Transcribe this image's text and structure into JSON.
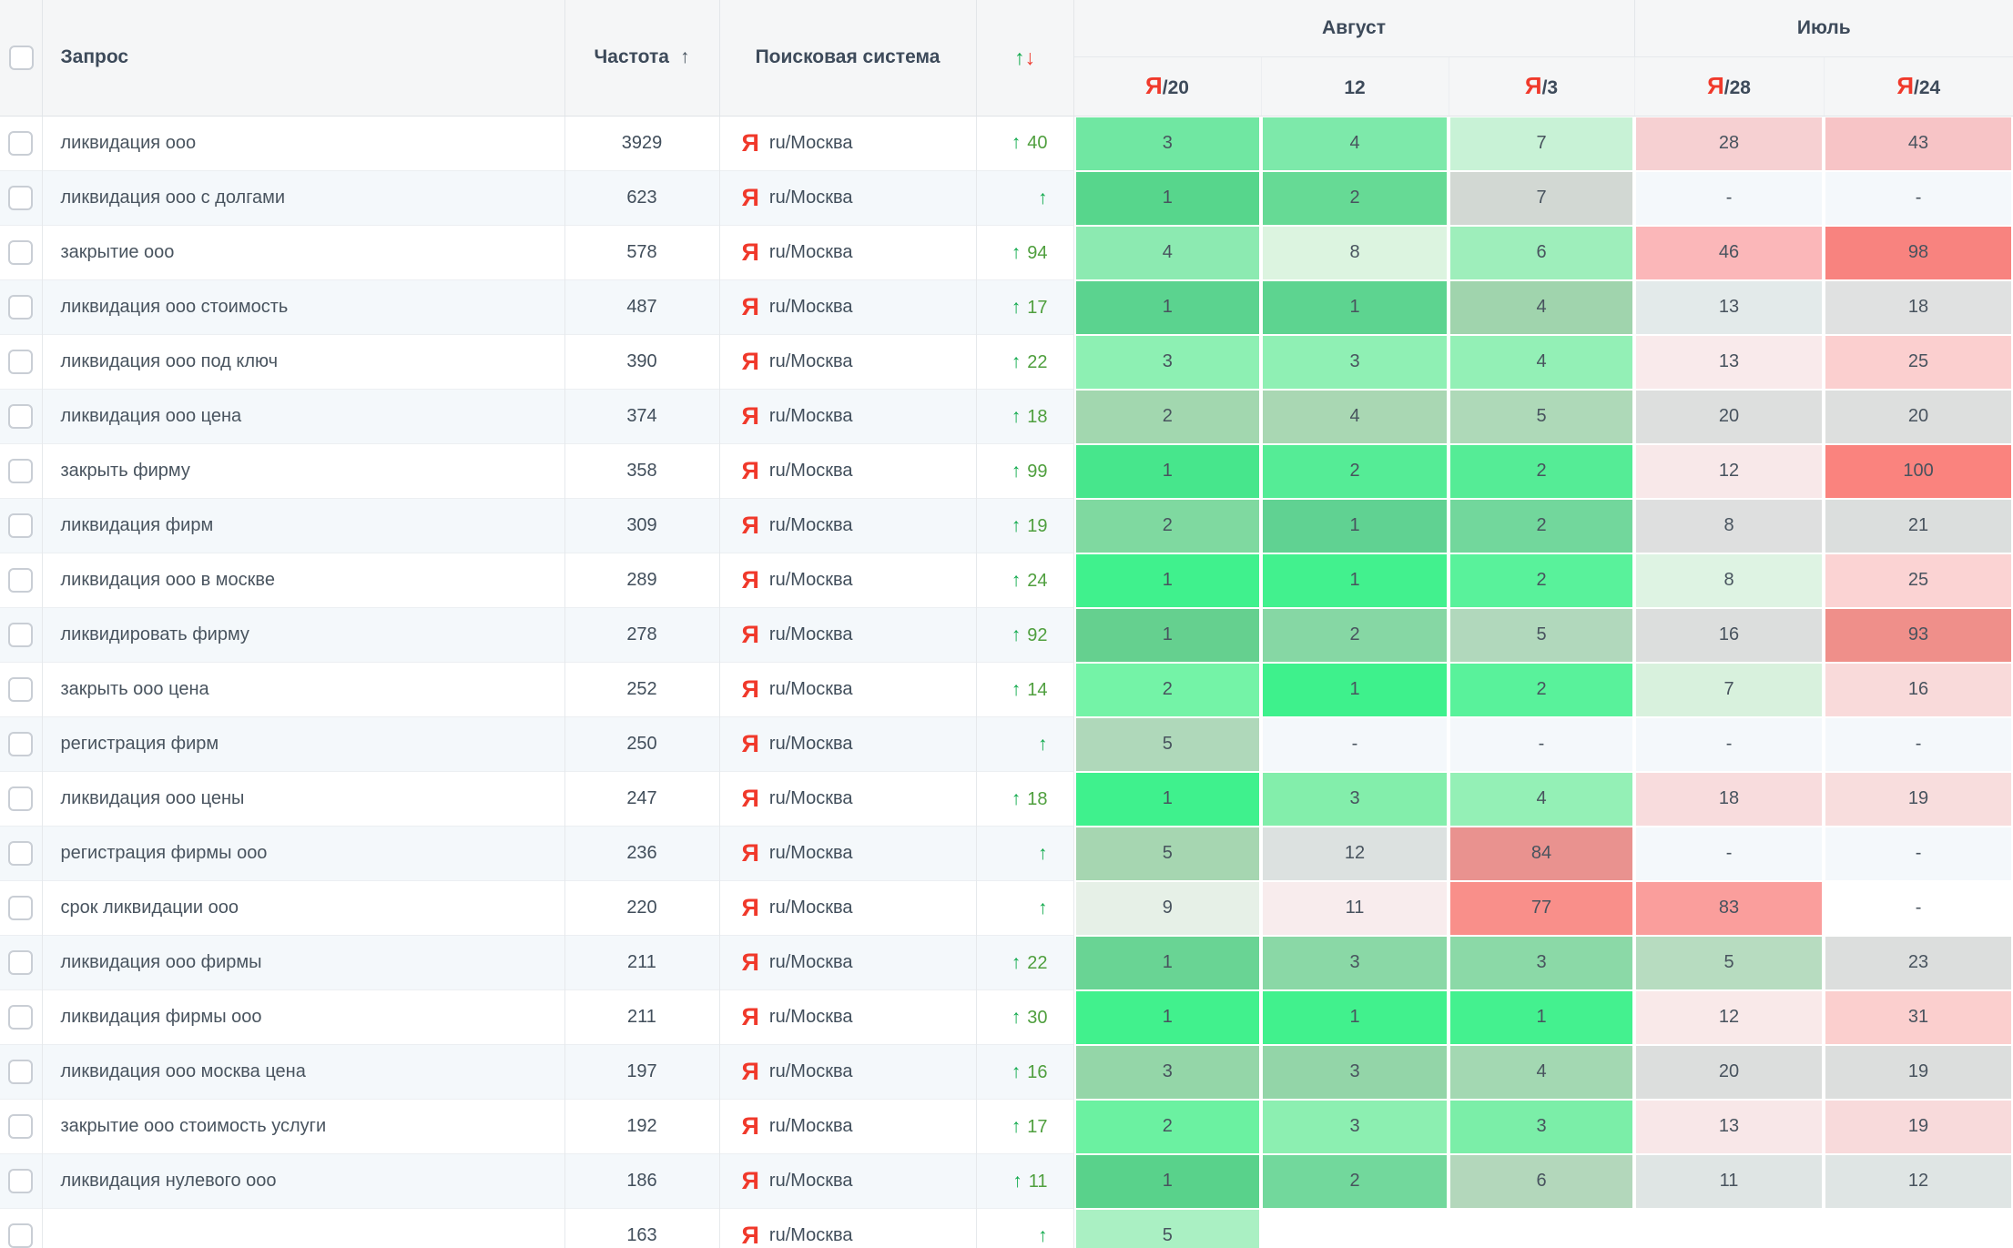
{
  "colors": {
    "row_base": "#ffffff",
    "row_alt": "#f4f8fb",
    "yandex_red": "#f0392b",
    "up_green": "#0ea94a",
    "down_red": "#ee4236",
    "change_green": "#4f9f3e",
    "header_text": "#3d4a5a"
  },
  "header": {
    "query_label": "Запрос",
    "freq_label": "Частота",
    "freq_sort_icon": "↑",
    "engine_label": "Поисковая система",
    "change_up_icon": "↑",
    "change_down_icon": "↓",
    "groups": [
      {
        "label": "Август"
      },
      {
        "label": "Июль"
      }
    ],
    "date_columns": [
      {
        "ya": "Я",
        "label": "/20"
      },
      {
        "ya": "",
        "label": "12"
      },
      {
        "ya": "Я",
        "label": "/3"
      },
      {
        "ya": "Я",
        "label": "/28"
      },
      {
        "ya": "Я",
        "label": "/24"
      }
    ]
  },
  "rows": [
    {
      "query": "ликвидация ооо",
      "frequency": "3929",
      "engine_icon": "Я",
      "engine": "ru/Москва",
      "change": "40",
      "cells": [
        {
          "v": "3",
          "bg": "#70e7a2"
        },
        {
          "v": "4",
          "bg": "#7de9aa"
        },
        {
          "v": "7",
          "bg": "#c8f2d6"
        },
        {
          "v": "28",
          "bg": "#f6d0d2"
        },
        {
          "v": "43",
          "bg": "#f7c4c6"
        }
      ]
    },
    {
      "query": "ликвидация ооо с долгами",
      "frequency": "623",
      "engine_icon": "Я",
      "engine": "ru/Москва",
      "change": "",
      "cells": [
        {
          "v": "1",
          "bg": "#57d68c"
        },
        {
          "v": "2",
          "bg": "#66da95"
        },
        {
          "v": "7",
          "bg": "#d2d8d3"
        },
        {
          "v": "-",
          "bg": ""
        },
        {
          "v": "-",
          "bg": ""
        }
      ]
    },
    {
      "query": "закрытие ооо",
      "frequency": "578",
      "engine_icon": "Я",
      "engine": "ru/Москва",
      "change": "94",
      "cells": [
        {
          "v": "4",
          "bg": "#8ceab1"
        },
        {
          "v": "8",
          "bg": "#dcf4e0"
        },
        {
          "v": "6",
          "bg": "#9eeebb"
        },
        {
          "v": "46",
          "bg": "#fbb7b9"
        },
        {
          "v": "98",
          "bg": "#f8837f"
        }
      ]
    },
    {
      "query": "ликвидация ооо стоимость",
      "frequency": "487",
      "engine_icon": "Я",
      "engine": "ru/Москва",
      "change": "17",
      "cells": [
        {
          "v": "1",
          "bg": "#5bd38f"
        },
        {
          "v": "1",
          "bg": "#5dd490"
        },
        {
          "v": "4",
          "bg": "#a0d4ad"
        },
        {
          "v": "13",
          "bg": "#e3eaea"
        },
        {
          "v": "18",
          "bg": "#e0e1e1"
        }
      ]
    },
    {
      "query": "ликвидация ооо под ключ",
      "frequency": "390",
      "engine_icon": "Я",
      "engine": "ru/Москва",
      "change": "22",
      "cells": [
        {
          "v": "3",
          "bg": "#8df0b3"
        },
        {
          "v": "3",
          "bg": "#8ff0b4"
        },
        {
          "v": "4",
          "bg": "#93f0b6"
        },
        {
          "v": "13",
          "bg": "#f9eaeb"
        },
        {
          "v": "25",
          "bg": "#fbcfcf"
        }
      ]
    },
    {
      "query": "ликвидация ооо цена",
      "frequency": "374",
      "engine_icon": "Я",
      "engine": "ru/Москва",
      "change": "18",
      "cells": [
        {
          "v": "2",
          "bg": "#a2d7af"
        },
        {
          "v": "4",
          "bg": "#a9d7b3"
        },
        {
          "v": "5",
          "bg": "#aed9b8"
        },
        {
          "v": "20",
          "bg": "#dddfde"
        },
        {
          "v": "20",
          "bg": "#dddfde"
        }
      ]
    },
    {
      "query": "закрыть фирму",
      "frequency": "358",
      "engine_icon": "Я",
      "engine": "ru/Москва",
      "change": "99",
      "cells": [
        {
          "v": "1",
          "bg": "#47e68c"
        },
        {
          "v": "2",
          "bg": "#55ec96"
        },
        {
          "v": "2",
          "bg": "#55ec96"
        },
        {
          "v": "12",
          "bg": "#f8e8e9"
        },
        {
          "v": "100",
          "bg": "#fa837e"
        }
      ]
    },
    {
      "query": "ликвидация фирм",
      "frequency": "309",
      "engine_icon": "Я",
      "engine": "ru/Москва",
      "change": "19",
      "cells": [
        {
          "v": "2",
          "bg": "#7fd9a0"
        },
        {
          "v": "1",
          "bg": "#60d292"
        },
        {
          "v": "2",
          "bg": "#72d79c"
        },
        {
          "v": "8",
          "bg": "#dedfdf"
        },
        {
          "v": "21",
          "bg": "#dbdedd"
        }
      ]
    },
    {
      "query": "ликвидация ооо в москве",
      "frequency": "289",
      "engine_icon": "Я",
      "engine": "ru/Москва",
      "change": "24",
      "cells": [
        {
          "v": "1",
          "bg": "#40f18d"
        },
        {
          "v": "1",
          "bg": "#42f18e"
        },
        {
          "v": "2",
          "bg": "#59f29b"
        },
        {
          "v": "8",
          "bg": "#def3e3"
        },
        {
          "v": "25",
          "bg": "#fbd3d3"
        }
      ]
    },
    {
      "query": "ликвидировать фирму",
      "frequency": "278",
      "engine_icon": "Я",
      "engine": "ru/Москва",
      "change": "92",
      "cells": [
        {
          "v": "1",
          "bg": "#65d08f"
        },
        {
          "v": "2",
          "bg": "#86d7a4"
        },
        {
          "v": "5",
          "bg": "#b1d8bc"
        },
        {
          "v": "16",
          "bg": "#dcdedd"
        },
        {
          "v": "93",
          "bg": "#ef8f8a"
        }
      ]
    },
    {
      "query": "закрыть ооо цена",
      "frequency": "252",
      "engine_icon": "Я",
      "engine": "ru/Москва",
      "change": "14",
      "cells": [
        {
          "v": "2",
          "bg": "#74f3a7"
        },
        {
          "v": "1",
          "bg": "#3ef18c"
        },
        {
          "v": "2",
          "bg": "#59f29b"
        },
        {
          "v": "7",
          "bg": "#d8f1dd"
        },
        {
          "v": "16",
          "bg": "#f9dada"
        }
      ]
    },
    {
      "query": "регистрация фирм",
      "frequency": "250",
      "engine_icon": "Я",
      "engine": "ru/Москва",
      "change": "",
      "cells": [
        {
          "v": "5",
          "bg": "#afd8ba"
        },
        {
          "v": "-",
          "bg": ""
        },
        {
          "v": "-",
          "bg": ""
        },
        {
          "v": "-",
          "bg": ""
        },
        {
          "v": "-",
          "bg": ""
        }
      ]
    },
    {
      "query": "ликвидация ооо цены",
      "frequency": "247",
      "engine_icon": "Я",
      "engine": "ru/Москва",
      "change": "18",
      "cells": [
        {
          "v": "1",
          "bg": "#3ff18d"
        },
        {
          "v": "3",
          "bg": "#83eeab"
        },
        {
          "v": "4",
          "bg": "#94f0b6"
        },
        {
          "v": "18",
          "bg": "#f8dcdd"
        },
        {
          "v": "19",
          "bg": "#f8dddd"
        }
      ]
    },
    {
      "query": "регистрация фирмы ооо",
      "frequency": "236",
      "engine_icon": "Я",
      "engine": "ru/Москва",
      "change": "",
      "cells": [
        {
          "v": "5",
          "bg": "#a6d6b1"
        },
        {
          "v": "12",
          "bg": "#dce1e0"
        },
        {
          "v": "84",
          "bg": "#e9928f"
        },
        {
          "v": "-",
          "bg": ""
        },
        {
          "v": "-",
          "bg": ""
        }
      ]
    },
    {
      "query": "срок ликвидации ооо",
      "frequency": "220",
      "engine_icon": "Я",
      "engine": "ru/Москва",
      "change": "",
      "cells": [
        {
          "v": "9",
          "bg": "#e6f0e7"
        },
        {
          "v": "11",
          "bg": "#f8eced"
        },
        {
          "v": "77",
          "bg": "#f98f8a"
        },
        {
          "v": "83",
          "bg": "#fa9e9c"
        },
        {
          "v": "-",
          "bg": ""
        }
      ]
    },
    {
      "query": "ликвидация ооо фирмы",
      "frequency": "211",
      "engine_icon": "Я",
      "engine": "ru/Москва",
      "change": "22",
      "cells": [
        {
          "v": "1",
          "bg": "#69d494"
        },
        {
          "v": "3",
          "bg": "#8ad8a6"
        },
        {
          "v": "3",
          "bg": "#8bd9a7"
        },
        {
          "v": "5",
          "bg": "#b7dcc0"
        },
        {
          "v": "23",
          "bg": "#dcdedd"
        }
      ]
    },
    {
      "query": "ликвидация фирмы ооо",
      "frequency": "211",
      "engine_icon": "Я",
      "engine": "ru/Москва",
      "change": "30",
      "cells": [
        {
          "v": "1",
          "bg": "#41f18d"
        },
        {
          "v": "1",
          "bg": "#41f18d"
        },
        {
          "v": "1",
          "bg": "#44f18f"
        },
        {
          "v": "12",
          "bg": "#f9e9e9"
        },
        {
          "v": "31",
          "bg": "#fbcfce"
        }
      ]
    },
    {
      "query": "ликвидация ооо москва цена",
      "frequency": "197",
      "engine_icon": "Я",
      "engine": "ru/Москва",
      "change": "16",
      "cells": [
        {
          "v": "3",
          "bg": "#94d6a8"
        },
        {
          "v": "3",
          "bg": "#93d5a8"
        },
        {
          "v": "4",
          "bg": "#a3d8b2"
        },
        {
          "v": "20",
          "bg": "#dcdedd"
        },
        {
          "v": "19",
          "bg": "#dcdedd"
        }
      ]
    },
    {
      "query": "закрытие ооо стоимость услуги",
      "frequency": "192",
      "engine_icon": "Я",
      "engine": "ru/Москва",
      "change": "17",
      "cells": [
        {
          "v": "2",
          "bg": "#6bf1a1"
        },
        {
          "v": "3",
          "bg": "#8cefb1"
        },
        {
          "v": "3",
          "bg": "#7beea8"
        },
        {
          "v": "13",
          "bg": "#f8e7e8"
        },
        {
          "v": "19",
          "bg": "#f8dadb"
        }
      ]
    },
    {
      "query": "ликвидация нулевого ооо",
      "frequency": "186",
      "engine_icon": "Я",
      "engine": "ru/Москва",
      "change": "11",
      "cells": [
        {
          "v": "1",
          "bg": "#59d28b"
        },
        {
          "v": "2",
          "bg": "#72d89c"
        },
        {
          "v": "6",
          "bg": "#b3d7bb"
        },
        {
          "v": "11",
          "bg": "#dfe5e4"
        },
        {
          "v": "12",
          "bg": "#dfe5e4"
        }
      ]
    },
    {
      "query": "",
      "frequency": "163",
      "engine_icon": "Я",
      "engine": "ru/Москва",
      "change": "",
      "cells": [
        {
          "v": "5",
          "bg": "#aaf0c3"
        },
        {
          "v": "",
          "bg": ""
        },
        {
          "v": "",
          "bg": ""
        },
        {
          "v": "",
          "bg": ""
        },
        {
          "v": "",
          "bg": ""
        }
      ]
    }
  ]
}
